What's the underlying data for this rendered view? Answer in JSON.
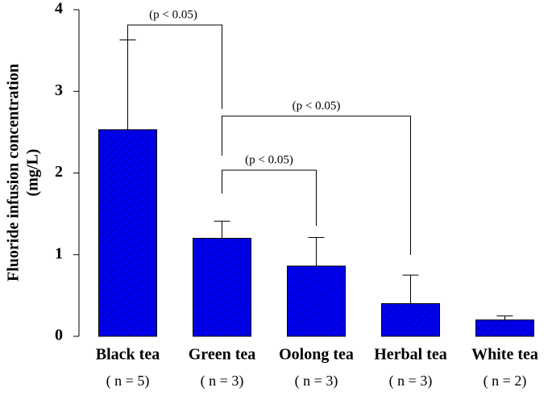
{
  "chart_data": {
    "type": "bar",
    "y_label": [
      "Fluoride infusion concentration",
      "(mg/L)"
    ],
    "categories": [
      "Black tea",
      "Green tea",
      "Oolong tea",
      "Herbal tea",
      "White tea"
    ],
    "sample_sizes": [
      "( n = 5)",
      "( n = 3)",
      "( n = 3)",
      "( n = 3)",
      "( n = 2)"
    ],
    "values": [
      2.53,
      1.2,
      0.86,
      0.4,
      0.2
    ],
    "errors": [
      1.1,
      0.21,
      0.35,
      0.35,
      0.05
    ],
    "color": "#0000ee",
    "ylim": [
      0,
      4
    ],
    "yticks": [
      0,
      1,
      2,
      3,
      4
    ],
    "annotations": [
      "(p < 0.05)",
      "(p < 0.05)",
      "(p < 0.05)"
    ]
  }
}
